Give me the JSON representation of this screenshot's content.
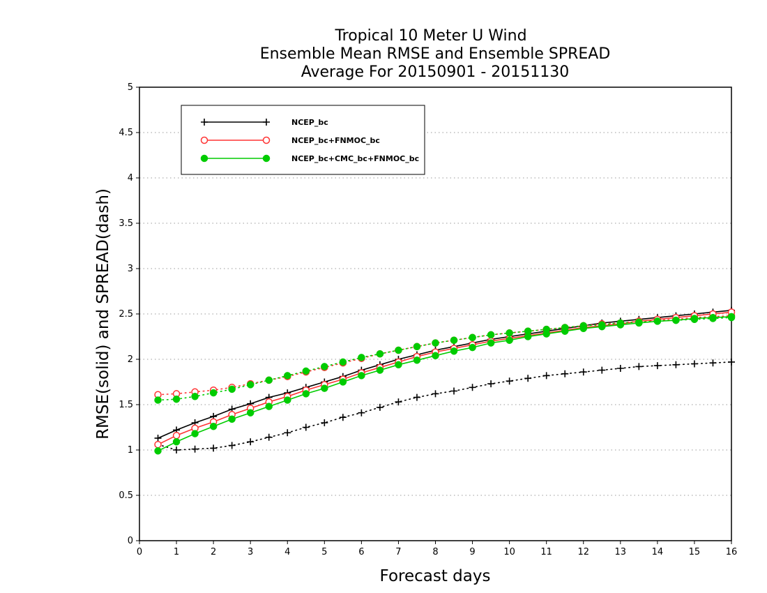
{
  "chart_data": {
    "type": "line",
    "title": [
      "Tropical 10 Meter U Wind",
      "Ensemble Mean RMSE and Ensemble SPREAD",
      "Average For 20150901 - 20151130"
    ],
    "xlabel": "Forecast days",
    "ylabel": "RMSE(solid) and SPREAD(dash)",
    "xlim": [
      0,
      16
    ],
    "ylim": [
      0,
      5
    ],
    "xticks": [
      "0",
      "1",
      "2",
      "3",
      "4",
      "5",
      "6",
      "7",
      "8",
      "9",
      "10",
      "11",
      "12",
      "13",
      "14",
      "15",
      "16"
    ],
    "yticks": [
      "0",
      "0.5",
      "1",
      "1.5",
      "2",
      "2.5",
      "3",
      "3.5",
      "4",
      "4.5",
      "5"
    ],
    "grid": "horizontal dotted",
    "legend_position": "top-left",
    "x": [
      0.5,
      1,
      1.5,
      2,
      2.5,
      3,
      3.5,
      4,
      4.5,
      5,
      5.5,
      6,
      6.5,
      7,
      7.5,
      8,
      8.5,
      9,
      9.5,
      10,
      10.5,
      11,
      11.5,
      12,
      12.5,
      13,
      13.5,
      14,
      14.5,
      15,
      15.5,
      16
    ],
    "series": [
      {
        "name": "NCEP_bc",
        "color": "#000000",
        "marker": "plus",
        "rmse": [
          1.13,
          1.22,
          1.3,
          1.37,
          1.45,
          1.51,
          1.58,
          1.63,
          1.69,
          1.75,
          1.81,
          1.88,
          1.94,
          2.0,
          2.05,
          2.1,
          2.14,
          2.18,
          2.22,
          2.25,
          2.28,
          2.31,
          2.34,
          2.37,
          2.4,
          2.42,
          2.44,
          2.46,
          2.48,
          2.5,
          2.52,
          2.54
        ],
        "spread": [
          1.06,
          1.0,
          1.01,
          1.02,
          1.05,
          1.09,
          1.14,
          1.19,
          1.25,
          1.3,
          1.36,
          1.41,
          1.47,
          1.53,
          1.58,
          1.62,
          1.65,
          1.69,
          1.73,
          1.76,
          1.79,
          1.82,
          1.84,
          1.86,
          1.88,
          1.9,
          1.92,
          1.93,
          1.94,
          1.95,
          1.96,
          1.97
        ]
      },
      {
        "name": "NCEP_bc+FNMOC_bc",
        "color": "#ff3333",
        "marker": "open-circle",
        "rmse": [
          1.06,
          1.16,
          1.24,
          1.31,
          1.39,
          1.46,
          1.53,
          1.59,
          1.66,
          1.72,
          1.78,
          1.85,
          1.91,
          1.97,
          2.03,
          2.08,
          2.12,
          2.16,
          2.2,
          2.23,
          2.26,
          2.29,
          2.32,
          2.35,
          2.37,
          2.39,
          2.42,
          2.44,
          2.46,
          2.48,
          2.5,
          2.52
        ],
        "spread": [
          1.61,
          1.62,
          1.64,
          1.66,
          1.69,
          1.73,
          1.77,
          1.81,
          1.86,
          1.91,
          1.96,
          2.01,
          2.06,
          2.1,
          2.14,
          2.18,
          2.21,
          2.24,
          2.27,
          2.29,
          2.31,
          2.33,
          2.35,
          2.37,
          2.39,
          2.4,
          2.42,
          2.43,
          2.44,
          2.46,
          2.47,
          2.48
        ]
      },
      {
        "name": "NCEP_bc+CMC_bc+FNMOC_bc",
        "color": "#00cc00",
        "marker": "filled-circle",
        "rmse": [
          0.99,
          1.09,
          1.18,
          1.26,
          1.34,
          1.41,
          1.48,
          1.55,
          1.62,
          1.68,
          1.75,
          1.82,
          1.88,
          1.94,
          1.99,
          2.04,
          2.09,
          2.13,
          2.18,
          2.21,
          2.25,
          2.28,
          2.31,
          2.34,
          2.36,
          2.38,
          2.4,
          2.42,
          2.43,
          2.45,
          2.46,
          2.47
        ],
        "spread": [
          1.55,
          1.56,
          1.59,
          1.63,
          1.67,
          1.72,
          1.77,
          1.82,
          1.87,
          1.92,
          1.97,
          2.02,
          2.06,
          2.1,
          2.14,
          2.18,
          2.21,
          2.24,
          2.27,
          2.29,
          2.31,
          2.33,
          2.35,
          2.37,
          2.38,
          2.4,
          2.41,
          2.42,
          2.43,
          2.44,
          2.45,
          2.46
        ]
      }
    ]
  }
}
